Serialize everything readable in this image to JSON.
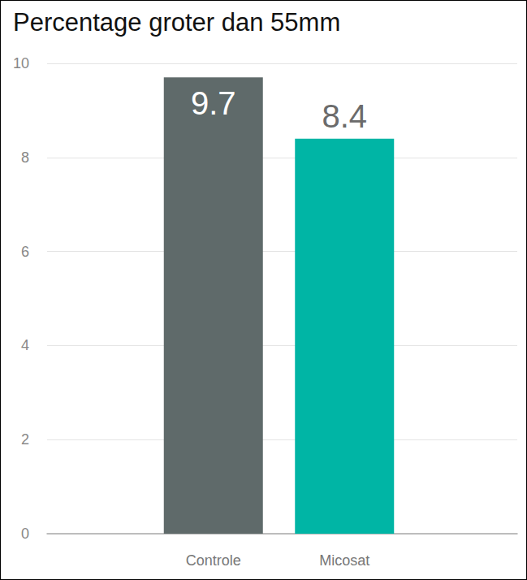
{
  "chart_data": {
    "type": "bar",
    "title": "Percentage groter dan 55mm",
    "categories": [
      "Controle",
      "Micosat"
    ],
    "values": [
      9.7,
      8.4
    ],
    "colors": [
      "#5f6a6a",
      "#00b5a5"
    ],
    "ylim": [
      0,
      10
    ],
    "yticks": [
      0,
      2,
      4,
      6,
      8,
      10
    ],
    "grid": true,
    "data_labels": true
  }
}
